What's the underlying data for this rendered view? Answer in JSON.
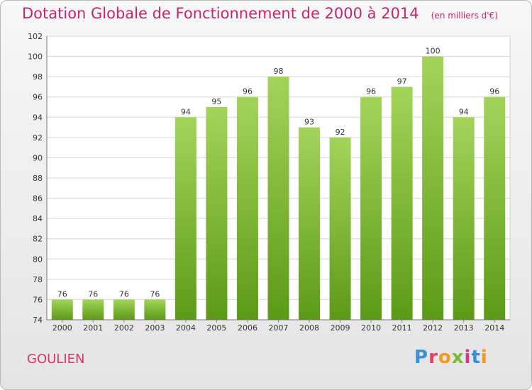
{
  "header": {
    "title": "Dotation Globale de Fonctionnement de 2000 à 2014",
    "unit": "(en milliers d'€)"
  },
  "footer": {
    "city": "GOULIEN",
    "logo_letters": [
      "P",
      "r",
      "o",
      "x",
      "i",
      "t",
      "i"
    ],
    "logo_colors": [
      "#3b8fd6",
      "#e04060",
      "#f19a1f",
      "#7cb83b",
      "#d9358c",
      "#3b8fd6",
      "#f19a1f"
    ]
  },
  "colors": {
    "bar_light": "#a3d45a",
    "bar_dark": "#5c9a16",
    "grid": "#d6d6d6",
    "axis_text": "#333333"
  },
  "chart_data": {
    "type": "bar",
    "title": "Dotation Globale de Fonctionnement de 2000 à 2014",
    "subtitle": "(en milliers d'€)",
    "categories": [
      "2000",
      "2001",
      "2002",
      "2003",
      "2004",
      "2005",
      "2006",
      "2007",
      "2008",
      "2009",
      "2010",
      "2011",
      "2012",
      "2013",
      "2014"
    ],
    "values": [
      76,
      76,
      76,
      76,
      94,
      95,
      96,
      98,
      93,
      92,
      96,
      97,
      100,
      94,
      96
    ],
    "ylim": [
      74,
      102
    ],
    "yticks": [
      74,
      76,
      78,
      80,
      82,
      84,
      86,
      88,
      90,
      92,
      94,
      96,
      98,
      100,
      102
    ],
    "grid": true,
    "data_labels": true
  }
}
